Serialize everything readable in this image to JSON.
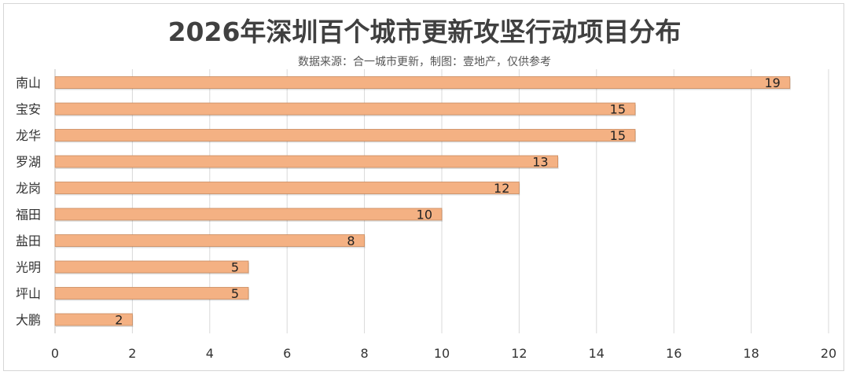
{
  "title": "2026年深圳百个城市更新攻坚行动项目分布",
  "subtitle": "数据来源：合一城市更新，制图：壹地产，仅供参考",
  "colors": {
    "bar_fill": "#f4b183",
    "bar_stroke": "#c98a5e",
    "grid": "#d9d9d9",
    "axis": "#bfbfbf"
  },
  "chart_data": {
    "type": "bar",
    "orientation": "horizontal",
    "categories": [
      "南山",
      "宝安",
      "龙华",
      "罗湖",
      "龙岗",
      "福田",
      "盐田",
      "光明",
      "坪山",
      "大鹏"
    ],
    "values": [
      19,
      15,
      15,
      13,
      12,
      10,
      8,
      5,
      5,
      2
    ],
    "xlim": [
      0,
      20
    ],
    "xticks": [
      0,
      2,
      4,
      6,
      8,
      10,
      12,
      14,
      16,
      18,
      20
    ],
    "grid": true,
    "data_labels": true
  }
}
